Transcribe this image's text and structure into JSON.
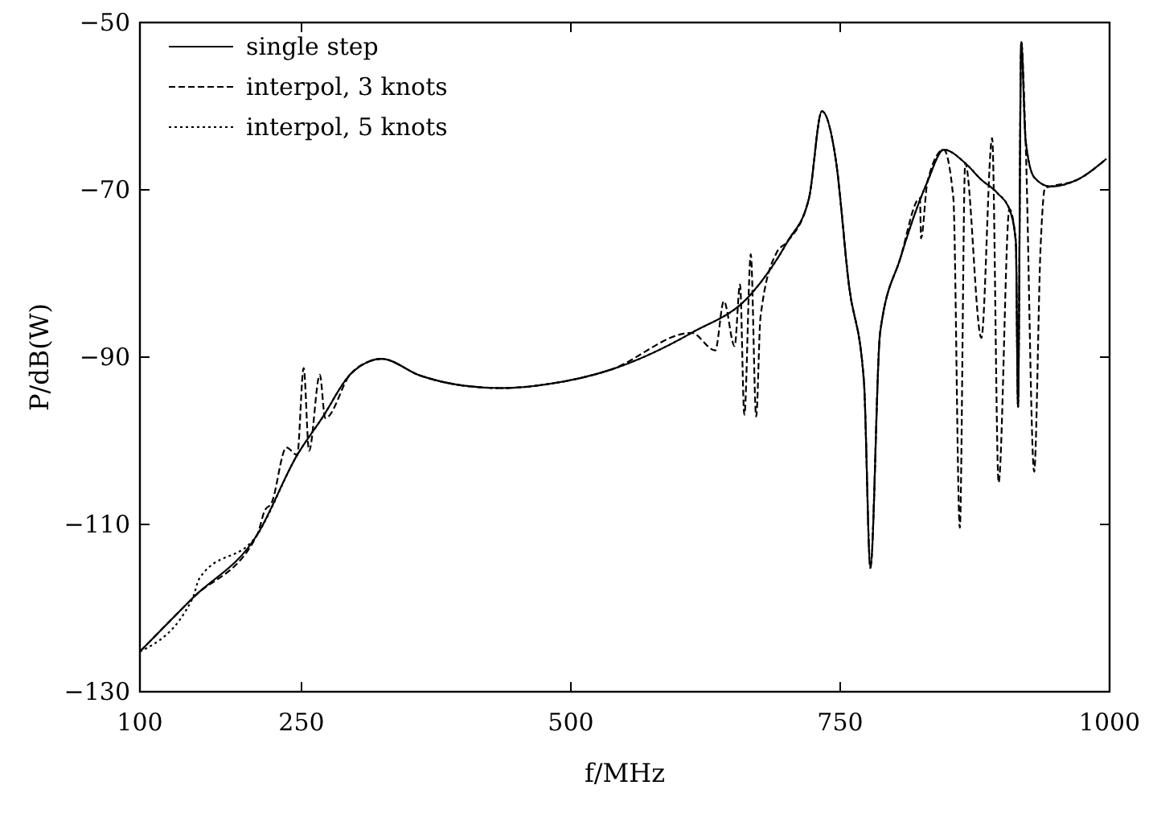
{
  "chart_data": {
    "type": "line",
    "xlabel": "f/MHz",
    "ylabel": "P/dB(W)",
    "xlim": [
      100,
      1000
    ],
    "ylim": [
      -130,
      -50
    ],
    "xticks": [
      100,
      250,
      500,
      750,
      1000
    ],
    "yticks": [
      -130,
      -110,
      -90,
      -70,
      -50
    ],
    "grid": false,
    "legend": "top left",
    "marker": "none",
    "series": [
      {
        "name": "single step",
        "color": "#000000",
        "line_style": "solid",
        "x": [
          100,
          149,
          209,
          246,
          269,
          295,
          313,
          324,
          360,
          400,
          436,
          480,
          537,
          612,
          667,
          701,
          721,
          733,
          746,
          758,
          772,
          778,
          787,
          806,
          831,
          846,
          866,
          881,
          896,
          907,
          913,
          915,
          918,
          922,
          930,
          945,
          970,
          997
        ],
        "values": [
          -125.2,
          -118.8,
          -111.2,
          -101.7,
          -97.3,
          -92.1,
          -90.5,
          -90.2,
          -92.2,
          -93.4,
          -93.7,
          -93.2,
          -91.5,
          -87.1,
          -82.5,
          -76.2,
          -71,
          -60.6,
          -66.5,
          -81.3,
          -92.9,
          -115.2,
          -87.1,
          -78.1,
          -69,
          -65.2,
          -66.8,
          -68.8,
          -70.4,
          -72.3,
          -76.2,
          -96,
          -52.3,
          -64,
          -68.5,
          -69.6,
          -68.8,
          -66.3
        ]
      },
      {
        "name": "interpol, 3 knots",
        "color": "#000000",
        "line_style": "dashed",
        "x": [
          100,
          149,
          209,
          216,
          222,
          236,
          246,
          252,
          257,
          267,
          272,
          295,
          313,
          324,
          360,
          400,
          436,
          480,
          537,
          612,
          634,
          642,
          652,
          657,
          661,
          667,
          672,
          676,
          691,
          701,
          721,
          733,
          746,
          758,
          772,
          778,
          787,
          806,
          824,
          825,
          831,
          846,
          855,
          861,
          866,
          881,
          891,
          897,
          907,
          913,
          915,
          918,
          922,
          930,
          936,
          940,
          945,
          970,
          997
        ],
        "values": [
          -125.2,
          -118.8,
          -111.2,
          -108.3,
          -107.5,
          -100.8,
          -101.7,
          -91.3,
          -101.2,
          -92.1,
          -97.3,
          -92.1,
          -90.5,
          -90.2,
          -92.2,
          -93.4,
          -93.7,
          -93.2,
          -91.5,
          -87.1,
          -89.2,
          -83.3,
          -88.7,
          -81.3,
          -96.9,
          -77.7,
          -97.1,
          -85.2,
          -77.5,
          -76.2,
          -71,
          -60.6,
          -66.5,
          -81.3,
          -92.9,
          -115.2,
          -87.1,
          -78.1,
          -71,
          -75.8,
          -69,
          -65.2,
          -71,
          -110.4,
          -66.8,
          -87.7,
          -63.8,
          -105,
          -72.3,
          -76.2,
          -96,
          -52.3,
          -64,
          -103.7,
          -76.7,
          -69.8,
          -69.6,
          -68.8,
          -66.3
        ]
      },
      {
        "name": "interpol, 5 knots",
        "color": "#000000",
        "line_style": "dotted",
        "x": [
          100,
          149,
          155,
          209,
          246,
          269,
          295,
          313,
          324,
          360,
          400,
          436,
          480,
          537,
          612,
          667,
          701,
          721,
          733,
          746,
          758,
          772,
          778,
          787,
          806,
          831,
          846,
          866,
          881,
          896,
          907,
          913,
          915,
          918,
          922,
          930,
          945,
          970,
          997
        ],
        "values": [
          -125.2,
          -118.8,
          -116.5,
          -111.2,
          -101.7,
          -97.3,
          -92.1,
          -90.5,
          -90.2,
          -92.2,
          -93.4,
          -93.7,
          -93.2,
          -91.5,
          -87.1,
          -82.5,
          -76.2,
          -71,
          -60.6,
          -66.5,
          -81.3,
          -92.9,
          -115.2,
          -87.1,
          -78.1,
          -69,
          -65.2,
          -66.8,
          -68.8,
          -70.4,
          -72.3,
          -76.2,
          -96,
          -52.3,
          -64,
          -68.5,
          -69.6,
          -68.8,
          -66.3
        ]
      }
    ]
  }
}
